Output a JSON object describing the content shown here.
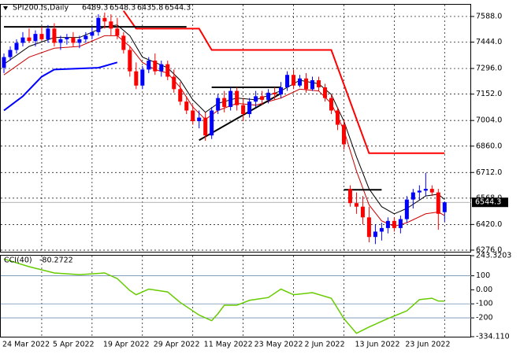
{
  "chart_data": [
    {
      "type": "candlestick",
      "title": "SPI200.fs,Daily",
      "categories": [
        "24 Mar 2022",
        null,
        null,
        null,
        null,
        null,
        null,
        null,
        "5 Apr 2022",
        null,
        null,
        null,
        null,
        null,
        null,
        null,
        "19 Apr 2022",
        null,
        null,
        null,
        null,
        null,
        null,
        null,
        "29 Apr 2022",
        null,
        null,
        null,
        null,
        null,
        null,
        null,
        "11 May 2022",
        null,
        null,
        null,
        null,
        null,
        null,
        null,
        "23 May 2022",
        null,
        null,
        null,
        null,
        null,
        null,
        null,
        "2 Jun 2022",
        null,
        null,
        null,
        null,
        null,
        null,
        null,
        "13 Jun 2022",
        null,
        null,
        null,
        null,
        null,
        null,
        null,
        "23 Jun 2022",
        null,
        null,
        null,
        null,
        null,
        null
      ],
      "open": [
        7300,
        7360,
        7400,
        7440,
        7470,
        7450,
        7490,
        7460,
        7520,
        7440,
        7460,
        7470,
        7440,
        7460,
        7480,
        7500,
        7580,
        7560,
        7520,
        7480,
        7400,
        7280,
        7200,
        7290,
        7340,
        7280,
        7320,
        7250,
        7180,
        7110,
        7060,
        7000,
        7020,
        6920,
        7060,
        7130,
        7080,
        7170,
        7090,
        7040,
        7110,
        7140,
        7120,
        7160,
        7150,
        7190,
        7260,
        7200,
        7240,
        7180,
        7230,
        7190,
        7130,
        7060,
        6980,
        6620,
        6540,
        6520,
        6460,
        6350,
        6380,
        6400,
        6440,
        6400,
        6450,
        6560,
        6600,
        6610,
        6620,
        6600,
        6489.3
      ],
      "high": [
        7380,
        7420,
        7460,
        7500,
        7520,
        7510,
        7530,
        7540,
        7550,
        7480,
        7490,
        7500,
        7480,
        7500,
        7530,
        7600,
        7610,
        7600,
        7580,
        7500,
        7420,
        7330,
        7310,
        7360,
        7380,
        7340,
        7340,
        7290,
        7220,
        7140,
        7090,
        7060,
        7050,
        7080,
        7150,
        7170,
        7190,
        7190,
        7130,
        7130,
        7170,
        7170,
        7180,
        7190,
        7220,
        7280,
        7290,
        7260,
        7270,
        7250,
        7250,
        7210,
        7150,
        7080,
        7010,
        6640,
        6600,
        6580,
        6520,
        6420,
        6430,
        6460,
        6460,
        6470,
        6580,
        6620,
        6640,
        6710,
        6640,
        6620,
        6548.3
      ],
      "low": [
        7270,
        7340,
        7380,
        7420,
        7440,
        7420,
        7450,
        7440,
        7420,
        7400,
        7430,
        7420,
        7410,
        7440,
        7460,
        7480,
        7520,
        7480,
        7460,
        7380,
        7250,
        7180,
        7180,
        7270,
        7260,
        7250,
        7230,
        7160,
        7090,
        7040,
        6980,
        6960,
        6890,
        6900,
        7040,
        7050,
        7060,
        7060,
        7000,
        7020,
        7080,
        7090,
        7100,
        7120,
        7130,
        7170,
        7180,
        7190,
        7160,
        7170,
        7170,
        7110,
        7040,
        6950,
        6840,
        6520,
        6480,
        6420,
        6320,
        6310,
        6330,
        6370,
        6380,
        6370,
        6430,
        6510,
        6560,
        6580,
        6580,
        6390,
        6435.8
      ],
      "close": [
        7360,
        7400,
        7440,
        7470,
        7450,
        7490,
        7460,
        7520,
        7440,
        7460,
        7470,
        7440,
        7460,
        7480,
        7500,
        7580,
        7560,
        7520,
        7480,
        7400,
        7280,
        7200,
        7290,
        7340,
        7280,
        7320,
        7250,
        7180,
        7110,
        7060,
        7000,
        7020,
        6920,
        7060,
        7130,
        7080,
        7170,
        7090,
        7040,
        7110,
        7140,
        7120,
        7160,
        7150,
        7190,
        7260,
        7200,
        7240,
        7180,
        7230,
        7190,
        7130,
        7060,
        6980,
        6870,
        6540,
        6520,
        6460,
        6350,
        6380,
        6400,
        6440,
        6400,
        6450,
        6560,
        6600,
        6610,
        6620,
        6600,
        6480,
        6544.3
      ],
      "up_color": "#0000ff",
      "down_color": "#ff0000",
      "ylim": [
        6267,
        7654
      ],
      "yticks": [
        {
          "value": 7588,
          "label": "7588.0"
        },
        {
          "value": 7444,
          "label": "7444.0"
        },
        {
          "value": 7296,
          "label": "7296.0"
        },
        {
          "value": 7152,
          "label": "7152.0"
        },
        {
          "value": 7004,
          "label": "7004.0"
        },
        {
          "value": 6860,
          "label": "6860.0"
        },
        {
          "value": 6712,
          "label": "6712.0"
        },
        {
          "value": 6568,
          "label": "6568.0"
        },
        {
          "value": 6420,
          "label": "6420.0"
        },
        {
          "value": 6276,
          "label": "6276.0"
        }
      ],
      "grid": true,
      "lines": [
        {
          "color": "#ff0000",
          "width": 2,
          "x": [
            19,
            21,
            31,
            33,
            52,
            58,
            70
          ],
          "values": [
            7620,
            7520,
            7520,
            7400,
            7400,
            6820,
            6820
          ]
        },
        {
          "color": "#0000ff",
          "width": 2,
          "x": [
            0,
            3,
            6,
            8,
            15,
            18
          ],
          "values": [
            7060,
            7140,
            7250,
            7290,
            7300,
            7330
          ]
        },
        {
          "color": "#000000",
          "width": 1,
          "x": [
            0,
            4,
            8,
            12,
            16,
            18,
            20,
            22,
            24,
            26,
            28,
            30,
            32,
            34,
            37,
            40,
            44,
            47,
            50,
            52,
            54,
            56,
            58,
            60,
            62,
            64,
            67,
            69,
            70
          ],
          "values": [
            7320,
            7420,
            7470,
            7470,
            7530,
            7540,
            7480,
            7360,
            7330,
            7300,
            7230,
            7120,
            7050,
            7100,
            7130,
            7120,
            7170,
            7230,
            7210,
            7150,
            7000,
            6800,
            6620,
            6520,
            6480,
            6510,
            6580,
            6590,
            6560
          ]
        },
        {
          "color": "#cc0000",
          "width": 1,
          "x": [
            0,
            4,
            8,
            12,
            16,
            18,
            20,
            22,
            24,
            26,
            28,
            30,
            32,
            34,
            37,
            40,
            44,
            47,
            50,
            52,
            54,
            56,
            58,
            60,
            62,
            64,
            67,
            69,
            70
          ],
          "values": [
            7260,
            7360,
            7410,
            7420,
            7480,
            7480,
            7420,
            7330,
            7290,
            7270,
            7190,
            7080,
            7010,
            7060,
            7100,
            7090,
            7130,
            7180,
            7170,
            7100,
            6950,
            6720,
            6530,
            6440,
            6410,
            6430,
            6480,
            6490,
            6470
          ]
        },
        {
          "color": "#000000",
          "width": 2,
          "x": [
            0,
            29
          ],
          "values": [
            7530,
            7530
          ]
        },
        {
          "color": "#000000",
          "width": 2,
          "x": [
            33,
            44
          ],
          "values": [
            7190,
            7190
          ]
        },
        {
          "color": "#000000",
          "width": 2,
          "x": [
            31,
            44
          ],
          "values": [
            6893,
            7156
          ]
        },
        {
          "color": "#000000",
          "width": 2,
          "x": [
            54,
            60
          ],
          "values": [
            6615,
            6615
          ]
        }
      ]
    },
    {
      "type": "line",
      "title": "CCI(40)",
      "color": "#66cc00",
      "x": [
        0,
        4,
        8,
        12,
        16,
        18,
        20,
        21,
        23,
        26,
        28,
        31,
        33,
        34,
        35,
        37,
        39,
        42,
        44,
        46,
        49,
        52,
        54,
        56,
        58,
        61,
        64,
        66,
        68,
        69,
        70
      ],
      "values": [
        220,
        165,
        120,
        108,
        120,
        80,
        -5,
        -35,
        5,
        -15,
        -90,
        -180,
        -220,
        -170,
        -110,
        -110,
        -75,
        -55,
        5,
        -35,
        -20,
        -60,
        -205,
        -310,
        -265,
        -205,
        -150,
        -70,
        -60,
        -80,
        -80.2722
      ],
      "ylim": [
        -334.11,
        243.3203
      ],
      "yticks": [
        243.3203,
        100,
        {
          "value": 0,
          "label": "0.00"
        },
        -100,
        -200,
        {
          "value": -334.11,
          "label": "-334.110"
        }
      ],
      "levels": [
        100,
        -100,
        -200
      ]
    }
  ]
}
